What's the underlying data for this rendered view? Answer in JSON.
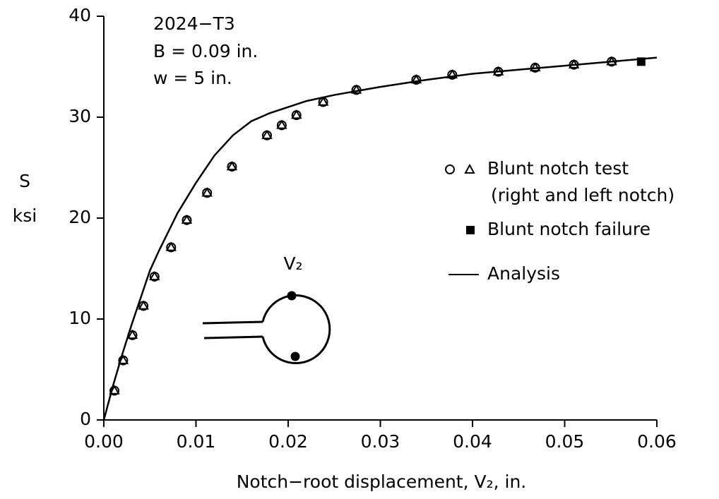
{
  "chart_data": {
    "type": "scatter",
    "annotations": [
      "2024−T3",
      "B = 0.09 in.",
      "w = 5 in."
    ],
    "ylabel": [
      "S",
      "ksi"
    ],
    "xlabel": "Notch−root displacement, V₂, in.",
    "diagram_label": "V₂",
    "xlim": [
      0,
      0.06
    ],
    "ylim": [
      0,
      40
    ],
    "xticks": [
      {
        "value": 0,
        "label": "0.00"
      },
      0.01,
      0.02,
      0.03,
      0.04,
      0.05,
      0.06
    ],
    "yticks": [
      0,
      10,
      20,
      30,
      40
    ],
    "color": "#000000",
    "series": [
      {
        "name": [
          "Blunt notch test",
          "(right and left notch)"
        ],
        "marker": "circle-triangle",
        "x": [
          0.00115,
          0.0021,
          0.0031,
          0.0043,
          0.0055,
          0.0073,
          0.009,
          0.0112,
          0.0139,
          0.0177,
          0.0193,
          0.0209,
          0.0238,
          0.0274,
          0.0339,
          0.0378,
          0.0428,
          0.0468,
          0.051,
          0.0551
        ],
        "values": [
          2.9,
          5.9,
          8.4,
          11.3,
          14.2,
          17.1,
          19.8,
          22.5,
          25.1,
          28.2,
          29.2,
          30.2,
          31.5,
          32.7,
          33.7,
          34.2,
          34.5,
          34.9,
          35.2,
          35.5
        ]
      },
      {
        "name": [
          "Blunt notch failure"
        ],
        "marker": "square",
        "x": [
          0.0583
        ],
        "values": [
          35.5
        ]
      },
      {
        "name": [
          "Analysis"
        ],
        "marker": "line",
        "x": [
          0,
          0.001,
          0.002,
          0.003,
          0.004,
          0.005,
          0.006,
          0.008,
          0.01,
          0.012,
          0.014,
          0.016,
          0.018,
          0.02,
          0.022,
          0.025,
          0.03,
          0.035,
          0.04,
          0.045,
          0.05,
          0.055,
          0.06
        ],
        "values": [
          0,
          3.4,
          6.5,
          9.4,
          12.1,
          14.8,
          16.8,
          20.5,
          23.5,
          26.2,
          28.2,
          29.6,
          30.4,
          31.0,
          31.6,
          32.2,
          33.0,
          33.7,
          34.3,
          34.7,
          35.1,
          35.5,
          35.9
        ]
      }
    ]
  }
}
